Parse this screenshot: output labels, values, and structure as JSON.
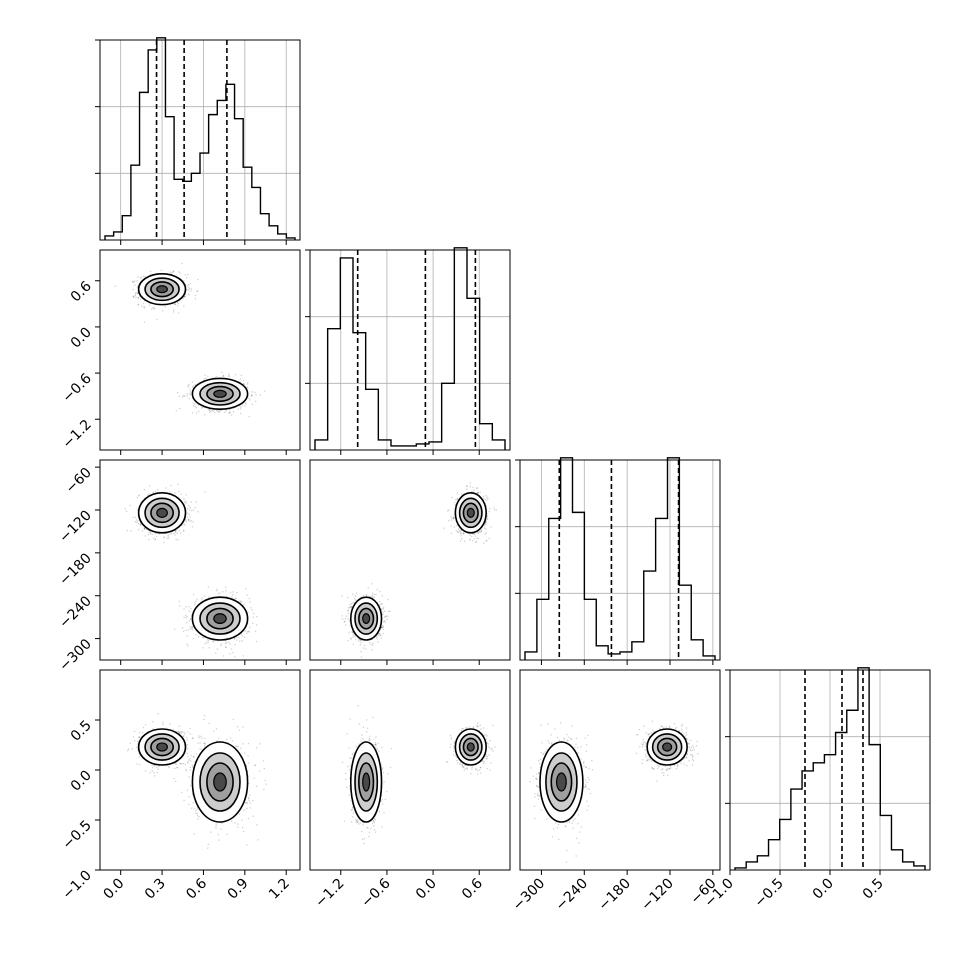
{
  "chart_data": {
    "type": "corner",
    "grid": true,
    "params": [
      {
        "range": [
          -0.15,
          1.3
        ],
        "ticks": [
          0.0,
          0.3,
          0.6,
          0.9,
          1.2
        ],
        "tick_labels": [
          "0.0",
          "0.3",
          "0.6",
          "0.9",
          "1.2"
        ],
        "quantiles": [
          0.26,
          0.46,
          0.77
        ],
        "modes": [
          [
            0.3,
            0.09,
            1.0
          ],
          [
            0.74,
            0.12,
            0.78
          ]
        ]
      },
      {
        "range": [
          -1.6,
          1.0
        ],
        "ticks": [
          -1.2,
          -0.6,
          0.0,
          0.6
        ],
        "tick_labels": [
          "−1.2",
          "−0.6",
          "0.0",
          "0.6"
        ],
        "quantiles": [
          -0.98,
          -0.1,
          0.55
        ],
        "modes": [
          [
            -0.9,
            0.1,
            0.8
          ],
          [
            0.5,
            0.06,
            1.0
          ]
        ]
      },
      {
        "range": [
          -330,
          -50
        ],
        "ticks": [
          -300,
          -240,
          -180,
          -120,
          -60
        ],
        "tick_labels": [
          "−300",
          "−240",
          "−180",
          "−120",
          "−60"
        ],
        "quantiles": [
          -275,
          -202,
          -108
        ],
        "modes": [
          [
            -272,
            14,
            1.0
          ],
          [
            -120,
            14,
            1.0
          ]
        ]
      },
      {
        "range": [
          -1.0,
          1.0
        ],
        "ticks": [
          -1.0,
          -0.5,
          0.0,
          0.5
        ],
        "tick_labels": [
          "−1.0",
          "−0.5",
          "0.0",
          "0.5"
        ],
        "quantiles": [
          -0.25,
          0.12,
          0.33
        ],
        "modes": [
          [
            -0.08,
            0.22,
            0.45
          ],
          [
            0.25,
            0.09,
            1.0
          ]
        ]
      }
    ],
    "row_tick_labels": {
      "1": [
        "0.6",
        "0.0",
        "−0.6",
        "−1.2"
      ],
      "2": [
        "−60",
        "−120",
        "−180",
        "−240",
        "−300"
      ],
      "3": [
        "0.5",
        "0.0",
        "−0.5",
        "−1.0"
      ]
    },
    "histograms": [
      [
        0.02,
        0.04,
        0.12,
        0.37,
        0.73,
        0.94,
        1.0,
        0.61,
        0.3,
        0.29,
        0.33,
        0.43,
        0.62,
        0.69,
        0.77,
        0.6,
        0.36,
        0.26,
        0.13,
        0.07,
        0.03,
        0.01
      ],
      [
        0.05,
        0.6,
        0.95,
        0.58,
        0.3,
        0.05,
        0.02,
        0.02,
        0.03,
        0.04,
        0.33,
        1.0,
        0.75,
        0.13,
        0.05
      ],
      [
        0.04,
        0.3,
        0.7,
        1.0,
        0.73,
        0.3,
        0.07,
        0.03,
        0.04,
        0.09,
        0.44,
        0.7,
        1.0,
        0.37,
        0.1,
        0.02
      ],
      [
        0.01,
        0.04,
        0.07,
        0.15,
        0.25,
        0.4,
        0.49,
        0.53,
        0.57,
        0.68,
        0.79,
        1.0,
        0.62,
        0.27,
        0.1,
        0.04,
        0.02
      ]
    ],
    "clusters": [
      {
        "center": [
          0.3,
          0.49,
          -124,
          0.23
        ],
        "sd": [
          0.085,
          0.1,
          14,
          0.09
        ]
      },
      {
        "center": [
          0.72,
          -0.87,
          -272,
          -0.12
        ],
        "sd": [
          0.1,
          0.1,
          15,
          0.2
        ]
      }
    ]
  }
}
